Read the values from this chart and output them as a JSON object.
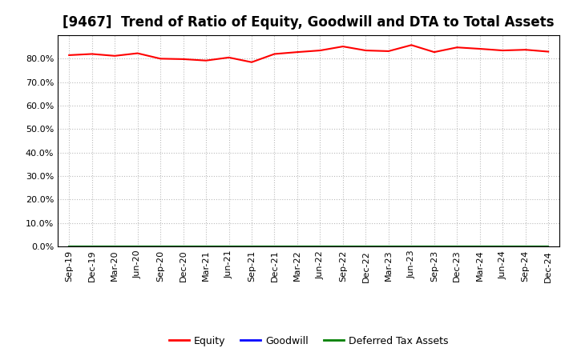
{
  "title": "[9467]  Trend of Ratio of Equity, Goodwill and DTA to Total Assets",
  "x_labels": [
    "Sep-19",
    "Dec-19",
    "Mar-20",
    "Jun-20",
    "Sep-20",
    "Dec-20",
    "Mar-21",
    "Jun-21",
    "Sep-21",
    "Dec-21",
    "Mar-22",
    "Jun-22",
    "Sep-22",
    "Dec-22",
    "Mar-23",
    "Jun-23",
    "Sep-23",
    "Dec-23",
    "Mar-24",
    "Jun-24",
    "Sep-24",
    "Dec-24"
  ],
  "equity": [
    81.5,
    82.0,
    81.2,
    82.3,
    80.0,
    79.8,
    79.2,
    80.5,
    78.5,
    82.0,
    82.8,
    83.5,
    85.2,
    83.5,
    83.2,
    85.8,
    82.8,
    84.8,
    84.2,
    83.5,
    83.8,
    83.0
  ],
  "goodwill": [
    0.0,
    0.0,
    0.0,
    0.0,
    0.0,
    0.0,
    0.0,
    0.0,
    0.0,
    0.0,
    0.0,
    0.0,
    0.0,
    0.0,
    0.0,
    0.0,
    0.0,
    0.0,
    0.0,
    0.0,
    0.0,
    0.0
  ],
  "dta": [
    0.0,
    0.0,
    0.0,
    0.0,
    0.0,
    0.0,
    0.0,
    0.0,
    0.0,
    0.0,
    0.0,
    0.0,
    0.0,
    0.0,
    0.0,
    0.0,
    0.0,
    0.0,
    0.0,
    0.0,
    0.0,
    0.0
  ],
  "equity_color": "#FF0000",
  "goodwill_color": "#0000FF",
  "dta_color": "#008000",
  "ylim_max": 90,
  "yticks": [
    0,
    10,
    20,
    30,
    40,
    50,
    60,
    70,
    80
  ],
  "background_color": "#FFFFFF",
  "plot_bg_color": "#FFFFFF",
  "grid_color": "#BBBBBB",
  "title_fontsize": 12,
  "tick_fontsize": 8,
  "legend_labels": [
    "Equity",
    "Goodwill",
    "Deferred Tax Assets"
  ],
  "legend_colors": [
    "#FF0000",
    "#0000FF",
    "#008000"
  ]
}
